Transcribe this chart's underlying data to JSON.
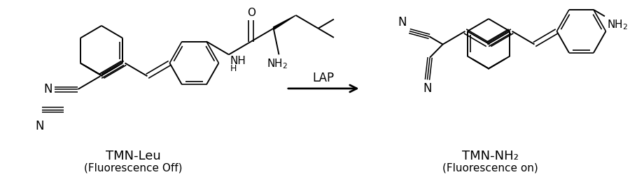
{
  "background_color": "#ffffff",
  "fig_width": 9.0,
  "fig_height": 2.54,
  "label_left": "TMN-Leu",
  "label_left_sub": "(Fluorescence Off)",
  "label_right": "TMN-NH₂",
  "label_right_sub": "(Fluorescence on)",
  "arrow_label": "LAP",
  "text_color": "#000000",
  "line_color": "#000000",
  "line_width": 1.4,
  "font_size": 11,
  "dpi": 100
}
